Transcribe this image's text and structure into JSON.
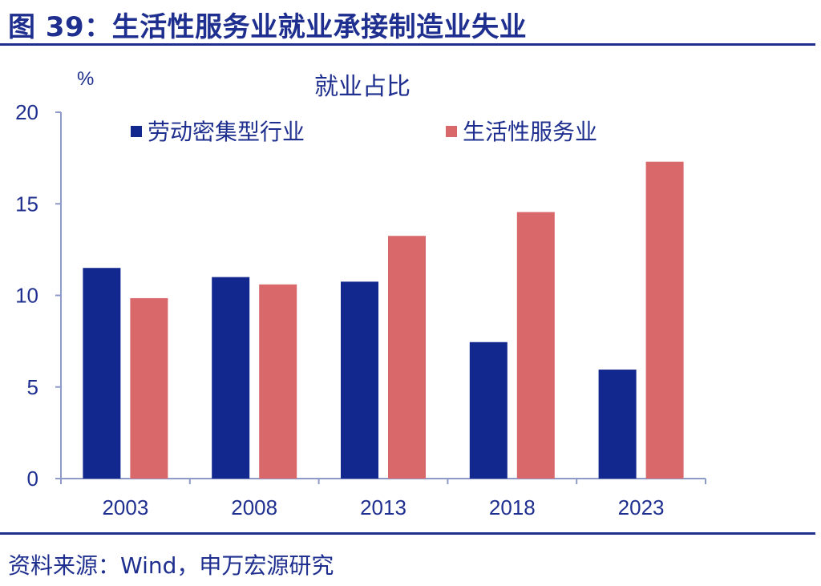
{
  "figure": {
    "title": "图 39：生活性服务业就业承接制造业失业",
    "source": "资料来源：Wind，申万宏源研究"
  },
  "colors": {
    "series_1": "#13288f",
    "series_2": "#d8686a",
    "axis": "#8e9bc9",
    "text": "#1f2f8f"
  },
  "chart_data": {
    "type": "bar",
    "title": "就业占比",
    "ylabel": "%",
    "xlabel": "",
    "ylim": [
      0,
      20
    ],
    "yticks": [
      0,
      5,
      10,
      15,
      20
    ],
    "categories": [
      "2003",
      "2008",
      "2013",
      "2018",
      "2023"
    ],
    "series": [
      {
        "name": "劳动密集型行业",
        "values": [
          11.5,
          11.0,
          10.75,
          7.45,
          5.95
        ]
      },
      {
        "name": "生活性服务业",
        "values": [
          9.85,
          10.6,
          13.25,
          14.55,
          17.3
        ]
      }
    ],
    "legend_position": "top",
    "grid": false
  }
}
